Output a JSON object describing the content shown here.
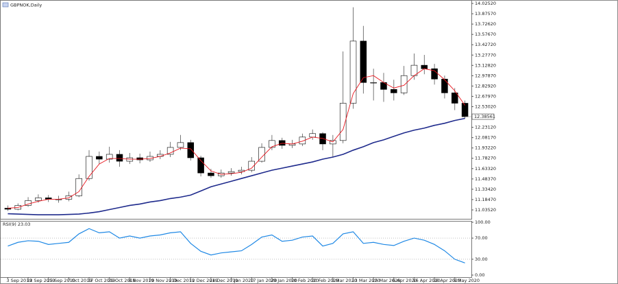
{
  "chart_data": [
    {
      "type": "candlestick",
      "title": "GBPNOK,Daily",
      "categories": [
        "3 Sep 2019",
        null,
        "13 Sep 2019",
        null,
        "25 Sep 2019",
        null,
        "7 Oct 2019",
        null,
        "17 Oct 2019",
        null,
        "29 Oct 2019",
        null,
        "8 Nov 2019",
        null,
        "20 Nov 2019",
        null,
        "2 Dec 2019",
        null,
        "12 Dec 2019",
        null,
        "24 Dec 2019",
        null,
        "7 Jan 2020",
        null,
        "17 Jan 2020",
        null,
        "29 Jan 2020",
        null,
        "10 Feb 2020",
        null,
        "20 Feb 2020",
        null,
        "3 Mar 2020",
        null,
        "13 Mar 2020",
        null,
        "25 Mar 2020",
        null,
        "6 Apr 2020",
        null,
        "16 Apr 2020",
        null,
        "28 Apr 2020",
        null,
        "8 May 2020",
        null
      ],
      "open": [
        11.06,
        11.045,
        11.1,
        11.17,
        11.21,
        11.19,
        11.19,
        11.24,
        11.49,
        11.81,
        11.77,
        11.84,
        11.74,
        11.79,
        11.76,
        11.81,
        11.84,
        11.94,
        12.01,
        11.79,
        11.57,
        11.53,
        11.57,
        11.59,
        11.61,
        11.74,
        11.94,
        12.04,
        11.97,
        11.99,
        12.09,
        12.14,
        11.99,
        12.04,
        12.58,
        13.48,
        12.88,
        12.88,
        12.78,
        12.73,
        12.98,
        13.13,
        13.08,
        12.93,
        12.73,
        12.58
      ],
      "high": [
        11.1,
        11.13,
        11.22,
        11.26,
        11.25,
        11.24,
        11.3,
        11.55,
        11.9,
        11.88,
        11.95,
        11.9,
        11.86,
        11.85,
        11.88,
        11.9,
        12.02,
        12.12,
        12.05,
        11.82,
        11.63,
        11.62,
        11.64,
        11.66,
        11.8,
        12.0,
        12.12,
        12.08,
        12.05,
        12.14,
        12.2,
        12.16,
        12.12,
        13.33,
        13.97,
        13.7,
        13.08,
        13.02,
        12.92,
        13.12,
        13.3,
        13.28,
        13.15,
        12.98,
        12.8,
        12.62
      ],
      "low": [
        11.02,
        11.03,
        11.08,
        11.14,
        11.15,
        11.14,
        11.16,
        11.22,
        11.46,
        11.7,
        11.72,
        11.66,
        11.7,
        11.71,
        11.73,
        11.77,
        11.8,
        11.9,
        11.75,
        11.52,
        11.5,
        11.5,
        11.53,
        11.55,
        11.58,
        11.72,
        11.9,
        11.92,
        11.93,
        11.96,
        12.05,
        11.9,
        11.8,
        12.0,
        12.5,
        12.72,
        12.62,
        12.6,
        12.62,
        12.7,
        12.92,
        13.0,
        12.85,
        12.65,
        12.48,
        12.36
      ],
      "close": [
        11.045,
        11.1,
        11.17,
        11.21,
        11.19,
        11.19,
        11.24,
        11.49,
        11.81,
        11.77,
        11.84,
        11.74,
        11.79,
        11.76,
        11.81,
        11.84,
        11.94,
        12.01,
        11.79,
        11.57,
        11.53,
        11.57,
        11.59,
        11.61,
        11.74,
        11.94,
        12.04,
        11.97,
        11.99,
        12.09,
        12.14,
        11.99,
        12.04,
        12.58,
        13.48,
        12.88,
        12.88,
        12.78,
        12.73,
        12.98,
        13.13,
        13.08,
        12.93,
        12.73,
        12.58,
        12.38561
      ],
      "up_color": "#ffffff",
      "down_color": "#000000",
      "overlays": [
        {
          "color": "#e8141c",
          "values": [
            11.06,
            11.07,
            11.12,
            11.16,
            11.19,
            11.19,
            11.21,
            11.3,
            11.52,
            11.7,
            11.78,
            11.78,
            11.77,
            11.77,
            11.78,
            11.81,
            11.86,
            11.93,
            11.92,
            11.75,
            11.6,
            11.55,
            11.56,
            11.58,
            11.64,
            11.8,
            11.95,
            12.0,
            11.99,
            12.03,
            12.09,
            12.07,
            12.02,
            12.2,
            12.72,
            12.95,
            12.98,
            12.88,
            12.8,
            12.84,
            12.98,
            13.08,
            13.05,
            12.92,
            12.76,
            12.55
          ]
        },
        {
          "color": "#1e2a8c",
          "values": [
            10.98,
            10.975,
            10.97,
            10.965,
            10.965,
            10.965,
            10.97,
            10.975,
            10.99,
            11.01,
            11.04,
            11.07,
            11.1,
            11.12,
            11.15,
            11.17,
            11.2,
            11.22,
            11.25,
            11.31,
            11.37,
            11.41,
            11.45,
            11.49,
            11.53,
            11.57,
            11.61,
            11.64,
            11.67,
            11.7,
            11.73,
            11.77,
            11.8,
            11.84,
            11.9,
            11.95,
            12.01,
            12.05,
            12.1,
            12.15,
            12.19,
            12.22,
            12.26,
            12.29,
            12.33,
            12.36
          ]
        }
      ],
      "last_price": 12.38561,
      "ylim": [
        10.896,
        14.065
      ],
      "yticks": [
        {
          "value": 14.0252,
          "label": "14.02520"
        },
        {
          "value": 13.8757,
          "label": "13.87570"
        },
        {
          "value": 13.7262,
          "label": "13.72620"
        },
        {
          "value": 13.5767,
          "label": "13.57670"
        },
        {
          "value": 13.4272,
          "label": "13.42720"
        },
        {
          "value": 13.2777,
          "label": "13.27770"
        },
        {
          "value": 13.1282,
          "label": "13.12820"
        },
        {
          "value": 12.9787,
          "label": "12.97870"
        },
        {
          "value": 12.8292,
          "label": "12.82920"
        },
        {
          "value": 12.6797,
          "label": "12.67970"
        },
        {
          "value": 12.5302,
          "label": "12.53020"
        },
        {
          "value": 12.2312,
          "label": "12.23120"
        },
        {
          "value": 12.0817,
          "label": "12.08170"
        },
        {
          "value": 11.9322,
          "label": "11.93220"
        },
        {
          "value": 11.7827,
          "label": "11.78270"
        },
        {
          "value": 11.6332,
          "label": "11.63320"
        },
        {
          "value": 11.4837,
          "label": "11.48370"
        },
        {
          "value": 11.3342,
          "label": "11.33420"
        },
        {
          "value": 11.1847,
          "label": "11.18470"
        },
        {
          "value": 11.0352,
          "label": "11.03520"
        }
      ]
    },
    {
      "type": "line",
      "title": "RSI(9) 23.03",
      "color": "#1e88e5",
      "values": [
        55,
        62,
        65,
        64,
        58,
        60,
        62,
        78,
        88,
        80,
        82,
        70,
        74,
        70,
        74,
        76,
        80,
        82,
        60,
        45,
        38,
        42,
        44,
        46,
        58,
        72,
        76,
        64,
        66,
        72,
        74,
        55,
        60,
        78,
        82,
        60,
        62,
        58,
        56,
        64,
        70,
        66,
        58,
        46,
        30,
        23.03
      ],
      "ylim": [
        0,
        100
      ],
      "yticks": [
        {
          "value": 100,
          "label": "100.00"
        },
        {
          "value": 70,
          "label": "70.00"
        },
        {
          "value": 30,
          "label": "30.00"
        },
        {
          "value": 0,
          "label": "0.00"
        }
      ]
    }
  ]
}
